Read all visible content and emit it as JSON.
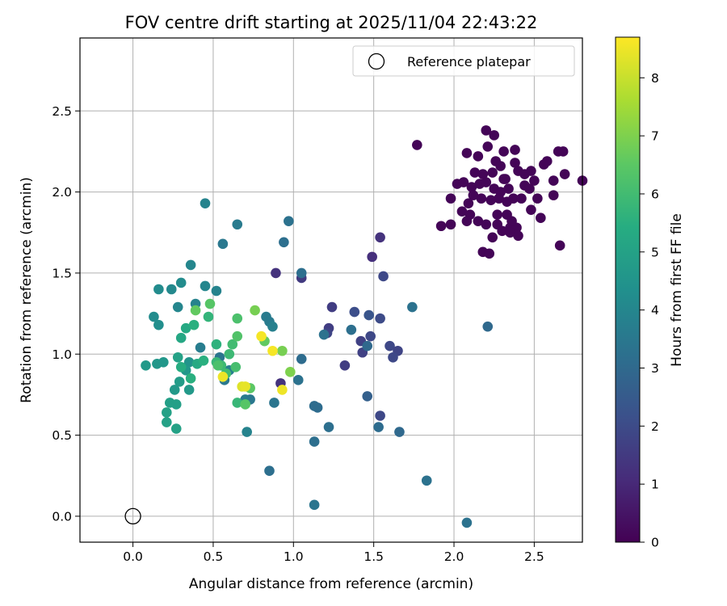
{
  "chart_data": {
    "type": "scatter",
    "title": "FOV centre drift starting at 2025/11/04 22:43:22",
    "xlabel": "Angular distance from reference (arcmin)",
    "ylabel": "Rotation from reference (arcmin)",
    "xlim": [
      -0.33,
      2.8
    ],
    "ylim": [
      -0.16,
      2.95
    ],
    "xticks": [
      0.0,
      0.5,
      1.0,
      1.5,
      2.0,
      2.5
    ],
    "yticks": [
      0.0,
      0.5,
      1.0,
      1.5,
      2.0,
      2.5
    ],
    "xtick_labels": [
      "0.0",
      "0.5",
      "1.0",
      "1.5",
      "2.0",
      "2.5"
    ],
    "ytick_labels": [
      "0.0",
      "0.5",
      "1.0",
      "1.5",
      "2.0",
      "2.5"
    ],
    "grid": true,
    "legend": {
      "position": "top-right",
      "label": "Reference platepar",
      "marker": "open-circle"
    },
    "reference_point": {
      "x": 0.0,
      "y": 0.0
    },
    "colorbar": {
      "label": "Hours from first FF file",
      "colormap": "viridis",
      "range": [
        0,
        8.7
      ],
      "ticks": [
        0,
        1,
        2,
        3,
        4,
        5,
        6,
        7,
        8
      ],
      "tick_labels": [
        "0",
        "1",
        "2",
        "3",
        "4",
        "5",
        "6",
        "7",
        "8"
      ]
    },
    "series": [
      {
        "name": "FOV centre",
        "points": [
          [
            2.08,
            2.24,
            0.1
          ],
          [
            2.15,
            2.22,
            0.1
          ],
          [
            2.2,
            2.38,
            0.1
          ],
          [
            2.25,
            2.35,
            0.1
          ],
          [
            2.21,
            2.28,
            0.1
          ],
          [
            2.31,
            2.25,
            0.1
          ],
          [
            2.38,
            2.26,
            0.1
          ],
          [
            2.26,
            2.19,
            0.1
          ],
          [
            2.18,
            2.11,
            0.1
          ],
          [
            2.24,
            2.12,
            0.1
          ],
          [
            2.29,
            2.16,
            0.1
          ],
          [
            2.32,
            2.08,
            0.1
          ],
          [
            2.38,
            2.18,
            0.1
          ],
          [
            2.4,
            2.13,
            0.1
          ],
          [
            2.44,
            2.11,
            0.1
          ],
          [
            2.48,
            2.13,
            0.1
          ],
          [
            2.44,
            2.04,
            0.1
          ],
          [
            2.47,
            2.02,
            0.1
          ],
          [
            2.02,
            2.05,
            0.1
          ],
          [
            2.06,
            2.06,
            0.1
          ],
          [
            2.11,
            2.03,
            0.1
          ],
          [
            2.16,
            2.05,
            0.1
          ],
          [
            2.2,
            2.06,
            0.1
          ],
          [
            2.25,
            2.02,
            0.1
          ],
          [
            2.29,
            2.0,
            0.1
          ],
          [
            2.34,
            2.02,
            0.1
          ],
          [
            2.37,
            1.96,
            0.1
          ],
          [
            2.42,
            1.96,
            0.1
          ],
          [
            2.33,
            1.94,
            0.1
          ],
          [
            2.28,
            1.96,
            0.1
          ],
          [
            2.23,
            1.95,
            0.1
          ],
          [
            2.17,
            1.96,
            0.1
          ],
          [
            2.12,
            1.98,
            0.1
          ],
          [
            2.09,
            1.93,
            0.1
          ],
          [
            2.05,
            1.88,
            0.1
          ],
          [
            2.1,
            1.86,
            0.1
          ],
          [
            2.15,
            1.82,
            0.1
          ],
          [
            2.2,
            1.8,
            0.1
          ],
          [
            2.27,
            1.8,
            0.1
          ],
          [
            2.33,
            1.86,
            0.1
          ],
          [
            2.35,
            1.78,
            0.1
          ],
          [
            2.39,
            1.78,
            0.1
          ],
          [
            2.3,
            1.76,
            0.1
          ],
          [
            2.35,
            1.75,
            0.1
          ],
          [
            2.4,
            1.73,
            0.1
          ],
          [
            1.92,
            1.79,
            0.1
          ],
          [
            1.98,
            1.8,
            0.1
          ],
          [
            1.98,
            1.96,
            0.1
          ],
          [
            2.08,
            1.82,
            0.1
          ],
          [
            2.18,
            1.63,
            0.1
          ],
          [
            2.22,
            1.62,
            0.1
          ],
          [
            2.24,
            1.72,
            0.1
          ],
          [
            2.48,
            1.89,
            0.1
          ],
          [
            2.54,
            1.84,
            0.1
          ],
          [
            2.52,
            1.96,
            0.1
          ],
          [
            2.5,
            2.07,
            0.1
          ],
          [
            2.56,
            2.17,
            0.1
          ],
          [
            2.58,
            2.19,
            0.1
          ],
          [
            2.62,
            2.07,
            0.1
          ],
          [
            2.65,
            2.25,
            0.1
          ],
          [
            2.68,
            2.25,
            0.1
          ],
          [
            2.69,
            2.11,
            0.1
          ],
          [
            2.62,
            1.98,
            0.1
          ],
          [
            2.66,
            1.67,
            0.1
          ],
          [
            2.8,
            2.07,
            0.1
          ],
          [
            1.77,
            2.29,
            0.1
          ],
          [
            2.27,
            1.86,
            0.1
          ],
          [
            2.31,
            2.08,
            0.1
          ],
          [
            2.13,
            2.12,
            0.1
          ],
          [
            2.36,
            1.82,
            0.1
          ],
          [
            0.89,
            1.5,
            1.3
          ],
          [
            1.05,
            1.47,
            1.5
          ],
          [
            1.49,
            1.6,
            1.2
          ],
          [
            1.54,
            1.72,
            1.3
          ],
          [
            1.56,
            1.48,
            1.9
          ],
          [
            1.54,
            1.22,
            2.0
          ],
          [
            1.47,
            1.24,
            2.3
          ],
          [
            1.38,
            1.26,
            2.1
          ],
          [
            1.24,
            1.29,
            1.6
          ],
          [
            1.22,
            1.16,
            1.6
          ],
          [
            1.21,
            1.13,
            1.8
          ],
          [
            1.42,
            1.08,
            1.7
          ],
          [
            1.48,
            1.11,
            1.9
          ],
          [
            1.43,
            1.01,
            1.7
          ],
          [
            1.6,
            1.05,
            1.9
          ],
          [
            1.65,
            1.02,
            1.8
          ],
          [
            1.62,
            0.98,
            1.9
          ],
          [
            1.32,
            0.93,
            1.6
          ],
          [
            0.92,
            0.82,
            1.3
          ],
          [
            1.54,
            0.62,
            1.9
          ],
          [
            1.46,
            0.74,
            2.7
          ],
          [
            1.66,
            0.52,
            3.0
          ],
          [
            1.53,
            0.55,
            3.1
          ],
          [
            1.74,
            1.29,
            3.3
          ],
          [
            1.46,
            1.05,
            3.0
          ],
          [
            2.21,
            1.17,
            3.0
          ],
          [
            1.83,
            0.22,
            3.3
          ],
          [
            2.08,
            -0.04,
            3.3
          ],
          [
            1.13,
            0.46,
            3.2
          ],
          [
            1.15,
            0.67,
            3.1
          ],
          [
            1.13,
            0.68,
            3.1
          ],
          [
            1.22,
            0.55,
            3.2
          ],
          [
            1.19,
            1.12,
            3.3
          ],
          [
            1.36,
            1.15,
            3.2
          ],
          [
            1.05,
            1.5,
            3.2
          ],
          [
            1.05,
            0.97,
            3.1
          ],
          [
            1.03,
            0.84,
            3.3
          ],
          [
            0.85,
            0.28,
            3.2
          ],
          [
            0.88,
            0.7,
            3.4
          ],
          [
            1.13,
            0.07,
            3.4
          ],
          [
            0.94,
            1.69,
            3.2
          ],
          [
            0.97,
            1.82,
            3.3
          ],
          [
            0.65,
            1.8,
            3.6
          ],
          [
            0.56,
            1.68,
            3.5
          ],
          [
            0.45,
            1.93,
            3.9
          ],
          [
            0.83,
            1.23,
            3.6
          ],
          [
            0.85,
            1.2,
            3.6
          ],
          [
            0.87,
            1.17,
            3.8
          ],
          [
            0.7,
            0.72,
            3.6
          ],
          [
            0.73,
            0.72,
            3.5
          ],
          [
            0.71,
            0.52,
            3.9
          ],
          [
            0.54,
            0.98,
            3.4
          ],
          [
            0.57,
            0.84,
            3.5
          ],
          [
            0.6,
            0.9,
            3.8
          ],
          [
            0.42,
            1.04,
            3.7
          ],
          [
            0.36,
            1.55,
            4.0
          ],
          [
            0.39,
            1.31,
            3.9
          ],
          [
            0.45,
            1.42,
            4.0
          ],
          [
            0.52,
            1.39,
            3.9
          ],
          [
            0.28,
            1.29,
            4.0
          ],
          [
            0.3,
            1.44,
            4.2
          ],
          [
            0.24,
            1.4,
            4.1
          ],
          [
            0.16,
            1.4,
            4.2
          ],
          [
            0.13,
            1.23,
            4.2
          ],
          [
            0.16,
            1.18,
            4.3
          ],
          [
            0.15,
            0.94,
            4.6
          ],
          [
            0.08,
            0.93,
            4.7
          ],
          [
            0.19,
            0.95,
            4.6
          ],
          [
            0.35,
            0.95,
            4.5
          ],
          [
            0.33,
            0.9,
            4.6
          ],
          [
            0.26,
            0.78,
            4.7
          ],
          [
            0.29,
            0.83,
            4.8
          ],
          [
            0.35,
            0.78,
            4.7
          ],
          [
            0.23,
            0.7,
            4.9
          ],
          [
            0.27,
            0.69,
            4.9
          ],
          [
            0.21,
            0.64,
            5.0
          ],
          [
            0.21,
            0.58,
            5.0
          ],
          [
            0.27,
            0.54,
            5.0
          ],
          [
            0.28,
            0.98,
            5.0
          ],
          [
            0.3,
            1.1,
            5.2
          ],
          [
            0.33,
            1.16,
            5.3
          ],
          [
            0.38,
            1.18,
            5.5
          ],
          [
            0.3,
            0.92,
            5.4
          ],
          [
            0.36,
            0.85,
            5.5
          ],
          [
            0.4,
            0.94,
            5.3
          ],
          [
            0.44,
            0.96,
            5.5
          ],
          [
            0.47,
            1.23,
            5.7
          ],
          [
            0.48,
            1.31,
            6.4
          ],
          [
            0.39,
            1.27,
            6.6
          ],
          [
            0.52,
            1.06,
            5.6
          ],
          [
            0.52,
            0.95,
            5.8
          ],
          [
            0.55,
            0.93,
            5.9
          ],
          [
            0.58,
            0.88,
            6.0
          ],
          [
            0.6,
            1.0,
            5.9
          ],
          [
            0.62,
            1.06,
            6.0
          ],
          [
            0.64,
            0.92,
            6.1
          ],
          [
            0.65,
            1.22,
            6.2
          ],
          [
            0.65,
            1.11,
            6.3
          ],
          [
            0.65,
            0.7,
            5.8
          ],
          [
            0.7,
            0.69,
            6.4
          ],
          [
            0.73,
            0.79,
            6.5
          ],
          [
            0.76,
            1.27,
            6.9
          ],
          [
            0.82,
            1.08,
            6.6
          ],
          [
            0.93,
            1.02,
            6.9
          ],
          [
            0.98,
            0.89,
            7.0
          ],
          [
            0.8,
            1.11,
            8.6
          ],
          [
            0.87,
            1.02,
            8.6
          ],
          [
            0.93,
            0.78,
            8.5
          ],
          [
            0.68,
            0.8,
            8.3
          ],
          [
            0.7,
            0.8,
            8.4
          ],
          [
            0.56,
            0.86,
            8.5
          ],
          [
            0.53,
            0.93,
            6.2
          ]
        ]
      }
    ]
  }
}
